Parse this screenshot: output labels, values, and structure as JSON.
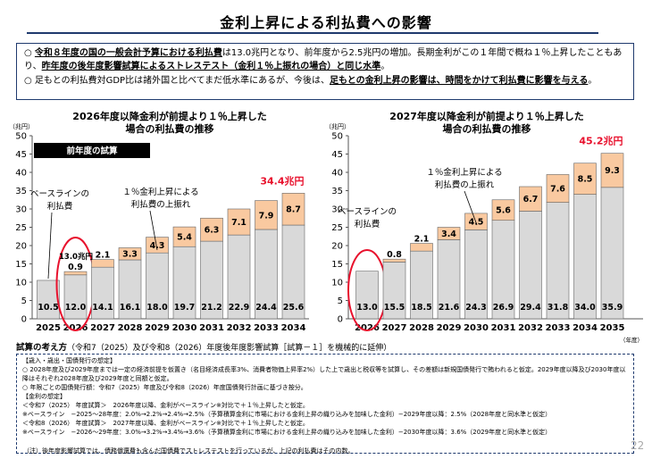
{
  "title": "金利上昇による利払費への影響",
  "summary": {
    "line1_pre": "○ ",
    "line1_bold": "令和８年度の国の一般会計予算における利払費",
    "line1_rest": "は13.0兆円となり、前年度から2.5兆円の増加。長期金利がこの１年間で概ね１％上昇したこともあり、",
    "line1_bold2": "昨年度の後年度影響試算によるストレステスト（金利１％上振れの場合）と同じ水準",
    "line1_end": "。",
    "line2_pre": "○ 足もとの利払費対GDP比は諸外国と比べてまだ低水準にあるが、今後は、",
    "line2_bold": "足もとの金利上昇の影響は、時間をかけて利払費に影響を与える",
    "line2_end": "。"
  },
  "method": {
    "label": "試算の考え方",
    "text": "（令和7（2025）及び令和8（2026）年度後年度影響試算［試算－１］を機械的に延伸）"
  },
  "notes": [
    "【歳入・歳出・国債発行の想定】",
    "○ 2028年度及び2029年度までは一定の経済前提を仮置き（名目経済成長率3%、消費者物価上昇率2%）した上で歳出と税収等を試算し、その差額は新規国債発行で賄われると仮定。2029年度以降及び2030年度以降はそれぞれ2028年度及び2029年度と同額と仮定。",
    "○ 年限ごとの国債発行額：令和7（2025）年度及び令和8（2026）年度国債発行計画に基づき按分。",
    "【金利の想定】",
    "＜令和7（2025） 年度試算＞　2026年度以降、金利がベースライン※対比で＋１％上昇したと仮定。",
    "※ベースライン　−2025〜28年度：2.0%→2.2%→2.4%→2.5%（予算積算金利に市場における金利上昇の織り込みを加味した金利）−2029年度以降：2.5%（2028年度と同水準と仮定）",
    "＜令和8（2026） 年度試算＞　2027年度以降、金利がベースライン※対比で＋１％上昇したと仮定。",
    "※ベースライン　−2026〜29年度：3.0%→3.2%→3.4%→3.6%（予算積算金利に市場における金利上昇の織り込みを加味した金利）−2030年度以降：3.6%（2029年度と同水準と仮定）"
  ],
  "footnote": "（注）後年度影響試算では、債務償還費も含んだ国債費でストレステストを行っているが、上記の利払費はその内数。",
  "page_number": "22",
  "colors": {
    "baseline": "#d9d9d9",
    "upside": "#f9c9a0",
    "total": "#e8112d",
    "axis": "#1f3a6e",
    "circle": "#e8112d"
  },
  "chart_data": [
    {
      "type": "bar",
      "title": "2026年度以降金利が前提より１％上昇した場合の利払費の推移",
      "title_line1": "2026年度以降金利が前提より１％上昇した",
      "title_line2": "場合の利払費の推移",
      "unit": "（兆円）",
      "categories": [
        "2025",
        "2026",
        "2027",
        "2028",
        "2029",
        "2030",
        "2031",
        "2032",
        "2033",
        "2034"
      ],
      "series": [
        {
          "name": "ベースラインの利払費",
          "values": [
            10.5,
            12.0,
            14.1,
            16.1,
            18.0,
            19.7,
            21.2,
            22.9,
            24.4,
            25.6
          ]
        },
        {
          "name": "１％金利上昇による利払費の上振れ",
          "values": [
            0,
            0.9,
            2.1,
            3.3,
            4.3,
            5.4,
            6.3,
            7.1,
            7.9,
            8.7
          ]
        }
      ],
      "ylim": [
        0,
        50
      ],
      "yticks": [
        "0",
        "5",
        "10",
        "15",
        "20",
        "25",
        "30",
        "35",
        "40",
        "45",
        "50"
      ],
      "grid": false,
      "total_label": "34.4兆円",
      "badge": "前年度の試算",
      "anno_baseline": [
        "ベースラインの",
        "利払費"
      ],
      "anno_upside": [
        "１％金利上昇による",
        "利払費の上振れ"
      ],
      "bar2026_total": "13.0兆円",
      "highlight": "2026"
    },
    {
      "type": "bar",
      "title": "2027年度以降金利が前提より１％上昇した場合の利払費の推移",
      "title_line1": "2027年度以降金利が前提より１％上昇した",
      "title_line2": "場合の利払費の推移",
      "unit": "（兆円）",
      "xunit": "（年度）",
      "categories": [
        "2026",
        "2027",
        "2028",
        "2029",
        "2030",
        "2031",
        "2032",
        "2033",
        "2034",
        "2035"
      ],
      "series": [
        {
          "name": "ベースラインの利払費",
          "values": [
            13.0,
            15.5,
            18.5,
            21.6,
            24.3,
            26.9,
            29.4,
            31.8,
            34.0,
            35.9
          ]
        },
        {
          "name": "１％金利上昇による利払費の上振れ",
          "values": [
            0,
            0.8,
            2.1,
            3.4,
            4.5,
            5.6,
            6.7,
            7.6,
            8.5,
            9.3
          ]
        }
      ],
      "ylim": [
        0,
        50
      ],
      "yticks": [
        "0",
        "5",
        "10",
        "15",
        "20",
        "25",
        "30",
        "35",
        "40",
        "45",
        "50"
      ],
      "grid": false,
      "total_label": "45.2兆円",
      "anno_baseline": [
        "ベースラインの",
        "利払費"
      ],
      "anno_upside": [
        "１％金利上昇による",
        "利払費の上振れ"
      ],
      "highlight": "2026"
    }
  ]
}
